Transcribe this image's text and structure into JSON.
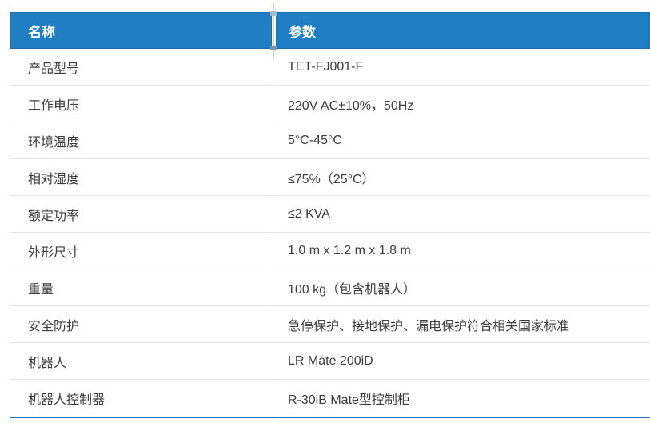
{
  "table": {
    "header": {
      "name_label": "名称",
      "value_label": "参数"
    },
    "rows": [
      {
        "name": "产品型号",
        "value": "TET-FJ001-F"
      },
      {
        "name": "工作电压",
        "value": "220V AC±10%，50Hz"
      },
      {
        "name": "环境温度",
        "value": "5°C-45°C"
      },
      {
        "name": "相对湿度",
        "value": "≤75%（25°C）"
      },
      {
        "name": "额定功率",
        "value": "≤2 KVA"
      },
      {
        "name": "外形尺寸",
        "value": "1.0 m x 1.2 m x 1.8 m"
      },
      {
        "name": "重量",
        "value": "100 kg（包含机器人）"
      },
      {
        "name": "安全防护",
        "value": "急停保护、接地保护、漏电保护符合相关国家标准"
      },
      {
        "name": "机器人",
        "value": "LR Mate 200iD"
      },
      {
        "name": "机器人控制器",
        "value": "R-30iB Mate型控制柜"
      }
    ]
  },
  "colors": {
    "header_bg": "#1F7EC4",
    "header_text": "#FFFFFF",
    "body_text": "#3C3C3C",
    "row_divider": "#E3E3E3",
    "table_bottom_border": "#2273B2",
    "resize_guide": "#C5D4E2",
    "resize_handle_top": "#A6BCCD",
    "resize_handle_bottom": "#7D95A9"
  }
}
